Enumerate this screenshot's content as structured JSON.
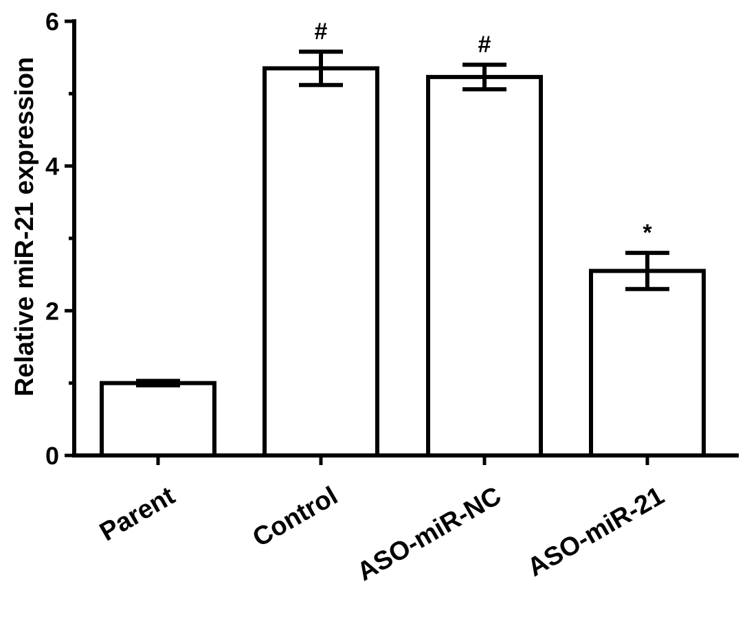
{
  "chart_data": {
    "type": "bar",
    "title": "",
    "xlabel": "",
    "ylabel": "Relative miR-21 expression",
    "categories": [
      "Parent",
      "Control",
      "ASO-miR-NC",
      "ASO-miR-21"
    ],
    "values": [
      1.0,
      5.35,
      5.23,
      2.55
    ],
    "error": [
      0.03,
      0.23,
      0.17,
      0.25
    ],
    "annotations": [
      "",
      "#",
      "#",
      "*"
    ],
    "ylim": [
      0,
      6
    ],
    "yticks": [
      "0",
      "2",
      "4",
      "6"
    ],
    "grid": false,
    "legend": "none"
  }
}
